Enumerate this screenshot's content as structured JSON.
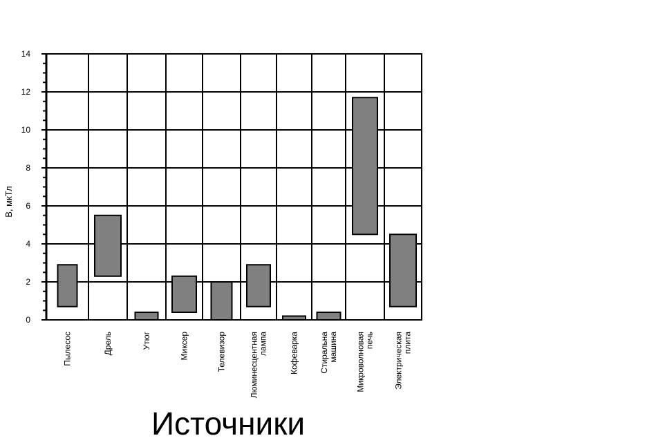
{
  "chart_data": {
    "type": "bar",
    "subtype": "floating-range",
    "title": "",
    "xlabel": "Источники",
    "ylabel": "B, мкТл",
    "ylim": [
      0,
      14
    ],
    "yticks": [
      0,
      2,
      4,
      6,
      8,
      10,
      12,
      14
    ],
    "grid": true,
    "bar_color": "#808080",
    "categories": [
      [
        "Пылесос"
      ],
      [
        "Дрель"
      ],
      [
        "Утюг"
      ],
      [
        "Миксер"
      ],
      [
        "Телевизор"
      ],
      [
        "Люминесцентная",
        "лампа"
      ],
      [
        "Кофеварка"
      ],
      [
        "Стиральна",
        "машина"
      ],
      [
        "Микроволновая",
        "печь"
      ],
      [
        "Электрическая",
        "плита"
      ]
    ],
    "ranges": [
      [
        0.7,
        2.9
      ],
      [
        2.3,
        5.5
      ],
      [
        0.0,
        0.4
      ],
      [
        0.4,
        2.3
      ],
      [
        0.0,
        2.0
      ],
      [
        0.7,
        2.9
      ],
      [
        0.0,
        0.2
      ],
      [
        0.0,
        0.4
      ],
      [
        4.5,
        11.7
      ],
      [
        0.7,
        4.5
      ]
    ]
  }
}
